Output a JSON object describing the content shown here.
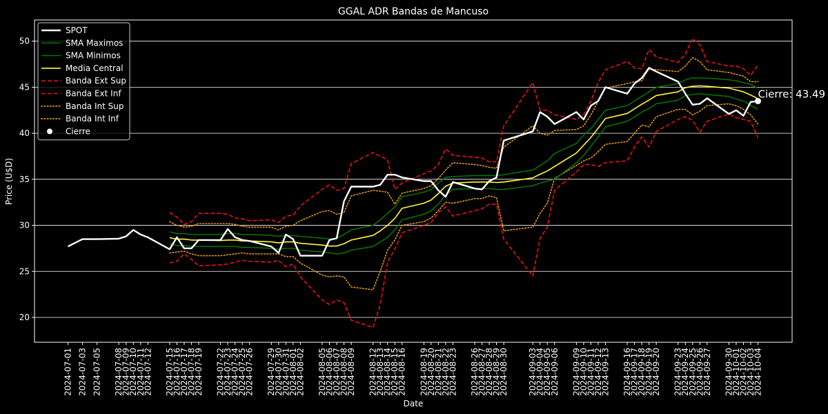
{
  "chart_data": {
    "type": "line",
    "title": "GGAL ADR Bandas de Mancuso",
    "xlabel": "Date",
    "ylabel": "Price (U$D)",
    "ylim": [
      17.3,
      52.3
    ],
    "yticks": [
      20,
      25,
      30,
      35,
      40,
      45,
      50
    ],
    "grid": "horizontal",
    "legend_position": "top-left",
    "background": "#000000",
    "x": [
      "2024-07-01",
      "2024-07-03",
      "2024-07-05",
      "2024-07-08",
      "2024-07-09",
      "2024-07-10",
      "2024-07-11",
      "2024-07-12",
      "2024-07-15",
      "2024-07-16",
      "2024-07-17",
      "2024-07-18",
      "2024-07-19",
      "2024-07-22",
      "2024-07-23",
      "2024-07-24",
      "2024-07-25",
      "2024-07-26",
      "2024-07-29",
      "2024-07-30",
      "2024-07-31",
      "2024-08-01",
      "2024-08-02",
      "2024-08-05",
      "2024-08-06",
      "2024-08-07",
      "2024-08-08",
      "2024-08-09",
      "2024-08-12",
      "2024-08-13",
      "2024-08-14",
      "2024-08-15",
      "2024-08-16",
      "2024-08-19",
      "2024-08-20",
      "2024-08-21",
      "2024-08-22",
      "2024-08-23",
      "2024-08-26",
      "2024-08-27",
      "2024-08-28",
      "2024-08-29",
      "2024-08-30",
      "2024-09-03",
      "2024-09-04",
      "2024-09-05",
      "2024-09-06",
      "2024-09-09",
      "2024-09-10",
      "2024-09-11",
      "2024-09-12",
      "2024-09-13",
      "2024-09-16",
      "2024-09-17",
      "2024-09-18",
      "2024-09-19",
      "2024-09-20",
      "2024-09-23",
      "2024-09-24",
      "2024-09-25",
      "2024-09-26",
      "2024-09-27",
      "2024-09-30",
      "2024-10-01",
      "2024-10-02",
      "2024-10-03",
      "2024-10-04"
    ],
    "series": [
      {
        "name": "SPOT",
        "color": "#ffffff",
        "style": "solid",
        "width": 2.4,
        "values": [
          27.7,
          28.5,
          28.5,
          28.55,
          28.8,
          29.5,
          29.0,
          28.7,
          27.4,
          28.7,
          27.5,
          27.5,
          28.4,
          28.4,
          29.6,
          28.7,
          28.4,
          28.3,
          27.7,
          27.0,
          29.0,
          28.5,
          26.7,
          26.7,
          28.4,
          28.6,
          32.6,
          34.2,
          34.2,
          34.4,
          35.5,
          35.5,
          35.2,
          34.8,
          34.8,
          33.8,
          33.1,
          34.7,
          34.0,
          33.9,
          34.8,
          35.2,
          39.2,
          40.2,
          42.3,
          41.8,
          41.0,
          42.3,
          41.5,
          43.0,
          43.5,
          45.0,
          44.3,
          45.4,
          46.0,
          47.1,
          46.7,
          45.6,
          44.3,
          43.1,
          43.2,
          43.8,
          42.1,
          42.5,
          41.9,
          43.4,
          43.49
        ]
      },
      {
        "name": "SMA Maximos",
        "color": "#008000",
        "style": "solid",
        "width": 1.4,
        "values": [
          null,
          null,
          null,
          null,
          null,
          null,
          null,
          null,
          29.3,
          29.1,
          29.1,
          29.0,
          29.0,
          29.0,
          29.1,
          29.1,
          29.0,
          29.0,
          28.9,
          28.8,
          28.9,
          28.9,
          28.8,
          28.6,
          28.5,
          28.6,
          29.0,
          29.5,
          30.0,
          30.6,
          31.3,
          32.0,
          33.1,
          33.6,
          33.9,
          34.6,
          35.2,
          35.3,
          35.4,
          35.4,
          35.4,
          35.4,
          35.5,
          36.0,
          36.5,
          37.0,
          37.8,
          38.9,
          39.8,
          40.5,
          41.5,
          42.5,
          43.0,
          43.5,
          44.0,
          44.5,
          45.0,
          45.4,
          45.8,
          46.0,
          46.0,
          46.0,
          45.8,
          45.7,
          45.5,
          45.3,
          44.9
        ]
      },
      {
        "name": "SMA Minimos",
        "color": "#008000",
        "style": "solid",
        "width": 1.4,
        "values": [
          null,
          null,
          null,
          null,
          null,
          null,
          null,
          null,
          28.0,
          27.8,
          27.8,
          27.7,
          27.7,
          27.7,
          27.7,
          27.7,
          27.6,
          27.6,
          27.5,
          27.4,
          27.5,
          27.5,
          27.3,
          27.1,
          27.0,
          26.9,
          27.0,
          27.3,
          27.7,
          28.2,
          28.7,
          29.5,
          30.6,
          31.2,
          31.6,
          32.3,
          33.3,
          33.9,
          34.0,
          34.0,
          34.0,
          33.9,
          33.9,
          34.3,
          34.6,
          34.8,
          35.0,
          36.8,
          37.6,
          38.6,
          39.6,
          40.7,
          41.3,
          41.8,
          42.3,
          42.7,
          43.2,
          43.6,
          44.1,
          44.2,
          44.3,
          44.2,
          44.0,
          43.7,
          43.5,
          43.0,
          42.6
        ]
      },
      {
        "name": "Media Central",
        "color": "#ffff33",
        "style": "solid",
        "width": 1.6,
        "values": [
          null,
          null,
          null,
          null,
          null,
          null,
          null,
          null,
          28.65,
          28.5,
          28.5,
          28.4,
          28.4,
          28.35,
          28.4,
          28.4,
          28.3,
          28.3,
          28.2,
          28.1,
          28.2,
          28.2,
          28.05,
          27.85,
          27.75,
          27.75,
          28.0,
          28.4,
          28.9,
          29.4,
          30.0,
          30.75,
          31.85,
          32.4,
          32.75,
          33.45,
          34.25,
          34.6,
          34.7,
          34.7,
          34.7,
          34.65,
          34.7,
          35.15,
          35.55,
          35.9,
          36.4,
          37.85,
          38.7,
          39.55,
          40.55,
          41.6,
          42.15,
          42.65,
          43.15,
          43.6,
          44.1,
          44.5,
          44.95,
          45.1,
          45.15,
          45.1,
          44.9,
          44.7,
          44.5,
          44.15,
          43.75
        ]
      },
      {
        "name": "Banda Ext Sup",
        "color": "#ee1111",
        "style": "dashed",
        "width": 1.6,
        "values": [
          null,
          null,
          null,
          null,
          null,
          null,
          null,
          null,
          31.4,
          30.9,
          30.1,
          30.4,
          31.3,
          31.3,
          31.2,
          30.8,
          30.7,
          30.5,
          30.6,
          30.3,
          31.0,
          31.1,
          32.1,
          33.9,
          34.4,
          33.8,
          34.0,
          36.7,
          37.9,
          37.5,
          37.1,
          33.9,
          34.6,
          35.6,
          35.9,
          36.6,
          38.3,
          37.6,
          37.4,
          37.3,
          36.9,
          36.9,
          40.8,
          45.5,
          42.5,
          42.5,
          42.0,
          41.5,
          42.0,
          43.5,
          45.5,
          46.9,
          47.8,
          47.1,
          47.0,
          49.1,
          48.3,
          47.7,
          48.6,
          50.3,
          49.6,
          47.8,
          47.3,
          47.3,
          47.0,
          46.3,
          47.4
        ]
      },
      {
        "name": "Banda Ext Inf",
        "color": "#ee1111",
        "style": "dashed",
        "width": 1.6,
        "values": [
          null,
          null,
          null,
          null,
          null,
          null,
          null,
          null,
          25.9,
          26.1,
          26.9,
          26.3,
          25.6,
          25.7,
          25.8,
          26.0,
          26.2,
          26.1,
          26.0,
          26.2,
          25.5,
          25.8,
          24.4,
          21.9,
          21.4,
          21.9,
          21.6,
          19.7,
          18.9,
          21.4,
          26.0,
          27.4,
          29.2,
          30.0,
          30.3,
          31.4,
          32.0,
          31.0,
          31.6,
          31.8,
          32.3,
          32.3,
          28.5,
          24.5,
          28.6,
          29.8,
          33.8,
          35.8,
          36.6,
          36.6,
          36.4,
          36.8,
          37.0,
          38.5,
          39.6,
          38.5,
          40.2,
          41.5,
          41.8,
          41.4,
          40.1,
          41.3,
          42.1,
          41.7,
          41.5,
          41.3,
          39.5
        ]
      },
      {
        "name": "Banda Int Sup",
        "color": "#e69a10",
        "style": "dotted",
        "width": 1.6,
        "values": [
          null,
          null,
          null,
          null,
          null,
          null,
          null,
          null,
          30.4,
          30.0,
          29.8,
          29.9,
          30.2,
          30.2,
          30.2,
          30.1,
          29.9,
          29.8,
          29.8,
          29.5,
          29.9,
          30.0,
          30.5,
          31.5,
          31.6,
          31.2,
          31.4,
          33.2,
          33.8,
          33.7,
          33.6,
          32.3,
          33.5,
          34.0,
          34.3,
          35.1,
          36.0,
          36.8,
          36.6,
          36.5,
          36.3,
          36.2,
          38.5,
          40.8,
          40.0,
          39.8,
          40.3,
          40.4,
          40.8,
          42.0,
          43.5,
          44.9,
          45.4,
          45.6,
          45.7,
          47.0,
          46.9,
          46.7,
          47.3,
          48.2,
          47.8,
          46.9,
          46.6,
          46.4,
          46.2,
          45.6,
          45.6
        ]
      },
      {
        "name": "Banda Int Inf",
        "color": "#e69a10",
        "style": "dotted",
        "width": 1.6,
        "values": [
          null,
          null,
          null,
          null,
          null,
          null,
          null,
          null,
          27.0,
          27.1,
          27.2,
          26.9,
          26.7,
          26.7,
          26.8,
          26.9,
          27.0,
          26.9,
          26.9,
          26.9,
          26.6,
          26.6,
          25.9,
          24.6,
          24.4,
          24.5,
          24.4,
          23.3,
          23.0,
          25.0,
          27.3,
          28.4,
          30.0,
          30.4,
          30.8,
          31.6,
          32.5,
          32.4,
          32.9,
          32.9,
          33.2,
          33.0,
          29.4,
          29.8,
          31.3,
          32.4,
          35.1,
          36.5,
          37.0,
          37.3,
          38.0,
          38.8,
          39.1,
          40.0,
          40.9,
          40.7,
          41.8,
          42.6,
          42.6,
          42.0,
          42.4,
          43.0,
          43.2,
          43.0,
          42.6,
          42.0,
          41.0
        ]
      }
    ],
    "cierre": {
      "name": "Cierre",
      "label": "Cierre: 43.49",
      "x": "2024-10-04",
      "y": 43.49,
      "color": "#ffffff"
    }
  }
}
